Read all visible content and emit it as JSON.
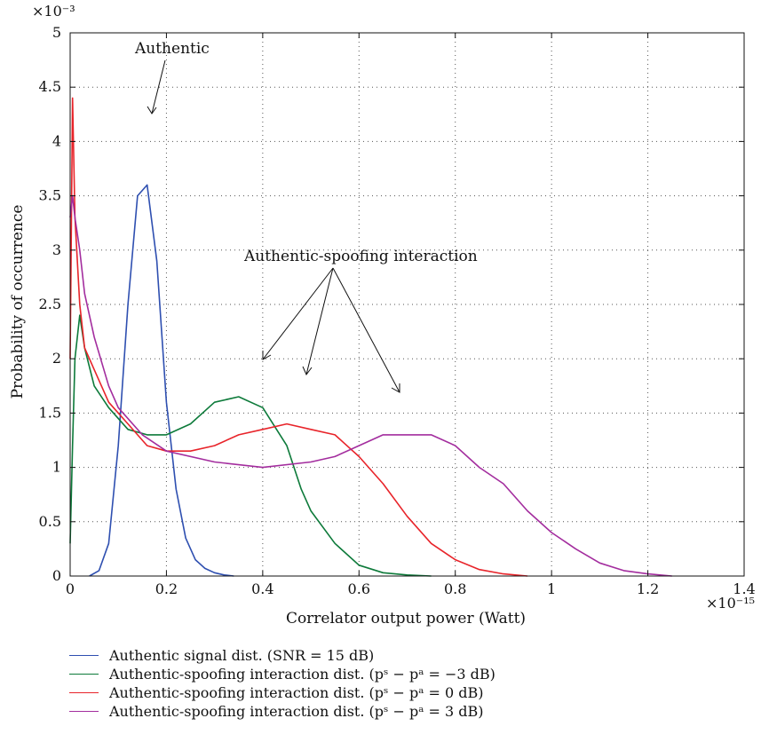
{
  "chart_data": {
    "type": "line",
    "xlabel": "Correlator output power (Watt)",
    "ylabel": "Probability of occurrence",
    "x_multiplier": "×10⁻¹⁵",
    "y_multiplier": "×10⁻³",
    "xlim": [
      0,
      1.4
    ],
    "ylim": [
      0,
      5
    ],
    "x_ticks": [
      "0",
      "0.2",
      "0.4",
      "0.6",
      "0.8",
      "1",
      "1.2",
      "1.4"
    ],
    "y_ticks": [
      "0",
      "0.5",
      "1",
      "1.5",
      "2",
      "2.5",
      "3",
      "3.5",
      "4",
      "4.5",
      "5"
    ],
    "grid": true,
    "legend_position": "bottom",
    "annotations": {
      "authentic": "Authentic",
      "interaction": "Authentic-spoofing interaction"
    },
    "series": [
      {
        "name": "Authentic signal dist. (SNR = 15 dB)",
        "color": "#2e4fb0",
        "x": [
          0.04,
          0.06,
          0.08,
          0.1,
          0.12,
          0.14,
          0.16,
          0.18,
          0.2,
          0.22,
          0.24,
          0.26,
          0.28,
          0.3,
          0.32,
          0.34
        ],
        "y": [
          0.0,
          0.05,
          0.3,
          1.2,
          2.5,
          3.5,
          3.6,
          2.9,
          1.6,
          0.8,
          0.35,
          0.15,
          0.07,
          0.03,
          0.01,
          0.0
        ]
      },
      {
        "name": "Authentic-spoofing interaction dist. (pˢ − pᵃ = −3 dB)",
        "color": "#0d7a3a",
        "x": [
          0.0,
          0.005,
          0.01,
          0.02,
          0.03,
          0.05,
          0.08,
          0.12,
          0.16,
          0.2,
          0.25,
          0.3,
          0.35,
          0.4,
          0.45,
          0.48,
          0.5,
          0.55,
          0.6,
          0.65,
          0.7,
          0.75
        ],
        "y": [
          0.3,
          1.2,
          2.0,
          2.4,
          2.1,
          1.75,
          1.55,
          1.35,
          1.3,
          1.3,
          1.4,
          1.6,
          1.65,
          1.55,
          1.2,
          0.8,
          0.6,
          0.3,
          0.1,
          0.03,
          0.01,
          0.0
        ]
      },
      {
        "name": "Authentic-spoofing interaction dist. (pˢ − pᵃ = 0 dB)",
        "color": "#e8242a",
        "x": [
          0.0,
          0.005,
          0.01,
          0.02,
          0.03,
          0.05,
          0.08,
          0.12,
          0.16,
          0.2,
          0.25,
          0.3,
          0.35,
          0.4,
          0.45,
          0.5,
          0.55,
          0.6,
          0.65,
          0.7,
          0.75,
          0.8,
          0.85,
          0.9,
          0.95
        ],
        "y": [
          2.0,
          4.4,
          3.3,
          2.5,
          2.1,
          1.9,
          1.6,
          1.4,
          1.2,
          1.15,
          1.15,
          1.2,
          1.3,
          1.35,
          1.4,
          1.35,
          1.3,
          1.1,
          0.85,
          0.55,
          0.3,
          0.15,
          0.06,
          0.02,
          0.0
        ]
      },
      {
        "name": "Authentic-spoofing interaction dist. (pˢ − pᵃ = 3 dB)",
        "color": "#a32d9e",
        "x": [
          0.0,
          0.005,
          0.01,
          0.02,
          0.03,
          0.05,
          0.08,
          0.1,
          0.15,
          0.2,
          0.3,
          0.4,
          0.5,
          0.55,
          0.6,
          0.65,
          0.7,
          0.75,
          0.8,
          0.85,
          0.9,
          0.95,
          1.0,
          1.05,
          1.1,
          1.15,
          1.2,
          1.25
        ],
        "y": [
          3.3,
          3.5,
          3.3,
          3.0,
          2.6,
          2.2,
          1.75,
          1.55,
          1.3,
          1.15,
          1.05,
          1.0,
          1.05,
          1.1,
          1.2,
          1.3,
          1.3,
          1.3,
          1.2,
          1.0,
          0.85,
          0.6,
          0.4,
          0.25,
          0.12,
          0.05,
          0.02,
          0.0
        ]
      }
    ]
  }
}
